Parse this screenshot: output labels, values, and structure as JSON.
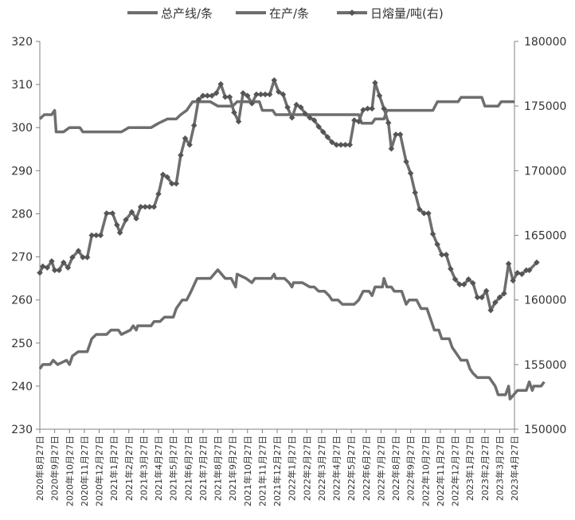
{
  "chart_data": {
    "type": "line",
    "x_ticks": [
      "2020年8月27日",
      "2020年9月27日",
      "2020年10月27日",
      "2020年11月27日",
      "2020年12月27日",
      "2021年1月27日",
      "2021年2月27日",
      "2021年3月27日",
      "2021年4月27日",
      "2021年5月27日",
      "2021年6月27日",
      "2021年7月27日",
      "2021年8月27日",
      "2021年9月27日",
      "2021年10月27日",
      "2021年11月27日",
      "2021年12月27日",
      "2022年1月27日",
      "2022年2月27日",
      "2022年3月27日",
      "2022年4月27日",
      "2022年5月27日",
      "2022年6月27日",
      "2022年7月27日",
      "2022年8月27日",
      "2022年9月27日",
      "2022年10月27日",
      "2022年11月27日",
      "2022年12月27日",
      "2023年1月27日",
      "2023年2月27日",
      "2023年3月27日",
      "2023年4月27日"
    ],
    "y_left": {
      "min": 230,
      "max": 320,
      "ticks": [
        "230",
        "240",
        "250",
        "260",
        "270",
        "280",
        "290",
        "300",
        "310",
        "320"
      ]
    },
    "y_right": {
      "min": 150000,
      "max": 180000,
      "ticks": [
        "150000",
        "155000",
        "160000",
        "165000",
        "170000",
        "175000",
        "180000"
      ]
    },
    "legend_position": "top",
    "grid": false,
    "series": [
      {
        "name": "总产线/条",
        "axis": "left",
        "color": "#6e6e6e",
        "marker": false,
        "values": [
          [
            0,
            302
          ],
          [
            0.3,
            303
          ],
          [
            0.8,
            303
          ],
          [
            1,
            304
          ],
          [
            1.1,
            299
          ],
          [
            1.6,
            299
          ],
          [
            2,
            300
          ],
          [
            2.7,
            300
          ],
          [
            2.9,
            299
          ],
          [
            5.5,
            299
          ],
          [
            6,
            300
          ],
          [
            7.5,
            300
          ],
          [
            8,
            301
          ],
          [
            8.6,
            302
          ],
          [
            9.2,
            302
          ],
          [
            9.5,
            303
          ],
          [
            9.9,
            304
          ],
          [
            10.3,
            306
          ],
          [
            11.5,
            306
          ],
          [
            12,
            305
          ],
          [
            13,
            305
          ],
          [
            13.3,
            306
          ],
          [
            14.8,
            306
          ],
          [
            14.9,
            305
          ],
          [
            15,
            304
          ],
          [
            15.7,
            304
          ],
          [
            15.9,
            303
          ],
          [
            21.5,
            303
          ],
          [
            21.7,
            301
          ],
          [
            22.4,
            301
          ],
          [
            22.6,
            302
          ],
          [
            23.2,
            302
          ],
          [
            23.4,
            304
          ],
          [
            26.5,
            304
          ],
          [
            26.8,
            306
          ],
          [
            28.2,
            306
          ],
          [
            28.4,
            307
          ],
          [
            29.8,
            307
          ],
          [
            30,
            305
          ],
          [
            30.9,
            305
          ],
          [
            31.1,
            306
          ],
          [
            32,
            306
          ]
        ]
      },
      {
        "name": "在产/条",
        "axis": "left",
        "color": "#6e6e6e",
        "marker": false,
        "values": [
          [
            0,
            244
          ],
          [
            0.2,
            245
          ],
          [
            0.7,
            245
          ],
          [
            0.9,
            246
          ],
          [
            1.2,
            245
          ],
          [
            1.8,
            246
          ],
          [
            2,
            245
          ],
          [
            2.2,
            247
          ],
          [
            2.6,
            248
          ],
          [
            3.2,
            248
          ],
          [
            3.5,
            251
          ],
          [
            3.8,
            252
          ],
          [
            4.5,
            252
          ],
          [
            4.8,
            253
          ],
          [
            5.3,
            253
          ],
          [
            5.5,
            252
          ],
          [
            6.1,
            253
          ],
          [
            6.3,
            254
          ],
          [
            6.5,
            253
          ],
          [
            6.6,
            254
          ],
          [
            7.5,
            254
          ],
          [
            7.7,
            255
          ],
          [
            8.1,
            255
          ],
          [
            8.4,
            256
          ],
          [
            9,
            256
          ],
          [
            9.2,
            258
          ],
          [
            9.6,
            260
          ],
          [
            9.9,
            260
          ],
          [
            10.2,
            262
          ],
          [
            10.6,
            265
          ],
          [
            11.5,
            265
          ],
          [
            12,
            267
          ],
          [
            12.5,
            265
          ],
          [
            12.9,
            265
          ],
          [
            13.2,
            263
          ],
          [
            13.3,
            266
          ],
          [
            13.9,
            265
          ],
          [
            14.3,
            264
          ],
          [
            14.5,
            265
          ],
          [
            15.6,
            265
          ],
          [
            15.8,
            266
          ],
          [
            15.9,
            265
          ],
          [
            16.5,
            265
          ],
          [
            16.8,
            264
          ],
          [
            17,
            263
          ],
          [
            17.1,
            264
          ],
          [
            17.7,
            264
          ],
          [
            18.2,
            263
          ],
          [
            18.5,
            263
          ],
          [
            18.8,
            262
          ],
          [
            19.2,
            262
          ],
          [
            19.5,
            261
          ],
          [
            19.7,
            260
          ],
          [
            20.1,
            260
          ],
          [
            20.4,
            259
          ],
          [
            21.2,
            259
          ],
          [
            21.5,
            260
          ],
          [
            21.8,
            262
          ],
          [
            22.2,
            262
          ],
          [
            22.4,
            261
          ],
          [
            22.6,
            263
          ],
          [
            23.1,
            263
          ],
          [
            23.2,
            265
          ],
          [
            23.4,
            263
          ],
          [
            23.7,
            263
          ],
          [
            23.9,
            262
          ],
          [
            24.4,
            262
          ],
          [
            24.7,
            259
          ],
          [
            24.9,
            260
          ],
          [
            25.4,
            260
          ],
          [
            25.7,
            258
          ],
          [
            26.1,
            258
          ],
          [
            26.4,
            255
          ],
          [
            26.6,
            253
          ],
          [
            26.9,
            253
          ],
          [
            27.1,
            251
          ],
          [
            27.6,
            251
          ],
          [
            27.8,
            249
          ],
          [
            28.2,
            247
          ],
          [
            28.4,
            246
          ],
          [
            28.8,
            246
          ],
          [
            29,
            244
          ],
          [
            29.2,
            243
          ],
          [
            29.5,
            242
          ],
          [
            30.3,
            242
          ],
          [
            30.7,
            240
          ],
          [
            30.9,
            238
          ],
          [
            31.4,
            238
          ],
          [
            31.6,
            240
          ],
          [
            31.7,
            237
          ],
          [
            32.2,
            239
          ],
          [
            32.8,
            239
          ],
          [
            33,
            241
          ],
          [
            33.2,
            239
          ],
          [
            33.3,
            240
          ],
          [
            33.8,
            240
          ],
          [
            34,
            241
          ]
        ]
      },
      {
        "name": "日熔量/吨(右)",
        "axis": "right",
        "color": "#6e6e6e",
        "marker": true,
        "values": [
          [
            0,
            162100
          ],
          [
            0.2,
            162600
          ],
          [
            0.5,
            162500
          ],
          [
            0.8,
            163000
          ],
          [
            1.0,
            162300
          ],
          [
            1.3,
            162300
          ],
          [
            1.6,
            162900
          ],
          [
            1.9,
            162500
          ],
          [
            2.2,
            163300
          ],
          [
            2.6,
            163800
          ],
          [
            2.9,
            163300
          ],
          [
            3.2,
            163300
          ],
          [
            3.5,
            165000
          ],
          [
            3.8,
            165000
          ],
          [
            4.1,
            165000
          ],
          [
            4.5,
            166700
          ],
          [
            4.9,
            166700
          ],
          [
            5.2,
            165800
          ],
          [
            5.4,
            165200
          ],
          [
            5.8,
            166200
          ],
          [
            6.2,
            166800
          ],
          [
            6.5,
            166300
          ],
          [
            6.8,
            167200
          ],
          [
            7.1,
            167200
          ],
          [
            7.4,
            167200
          ],
          [
            7.7,
            167200
          ],
          [
            8.0,
            168200
          ],
          [
            8.3,
            169700
          ],
          [
            8.6,
            169500
          ],
          [
            8.9,
            169000
          ],
          [
            9.2,
            169000
          ],
          [
            9.5,
            171200
          ],
          [
            9.8,
            172500
          ],
          [
            10.1,
            172000
          ],
          [
            10.4,
            173500
          ],
          [
            10.7,
            175500
          ],
          [
            11.0,
            175800
          ],
          [
            11.3,
            175800
          ],
          [
            11.6,
            175800
          ],
          [
            11.9,
            176000
          ],
          [
            12.2,
            176700
          ],
          [
            12.5,
            175700
          ],
          [
            12.8,
            175700
          ],
          [
            13.1,
            174500
          ],
          [
            13.4,
            173800
          ],
          [
            13.7,
            176000
          ],
          [
            14.0,
            175800
          ],
          [
            14.3,
            175200
          ],
          [
            14.6,
            175900
          ],
          [
            14.9,
            175900
          ],
          [
            15.2,
            175900
          ],
          [
            15.5,
            175900
          ],
          [
            15.8,
            177000
          ],
          [
            16.1,
            176100
          ],
          [
            16.4,
            175900
          ],
          [
            16.7,
            174900
          ],
          [
            17.0,
            174100
          ],
          [
            17.3,
            175100
          ],
          [
            17.6,
            174900
          ],
          [
            17.9,
            174400
          ],
          [
            18.2,
            174100
          ],
          [
            18.5,
            173900
          ],
          [
            18.8,
            173400
          ],
          [
            19.1,
            173000
          ],
          [
            19.4,
            172600
          ],
          [
            19.7,
            172200
          ],
          [
            20.0,
            172000
          ],
          [
            20.3,
            172000
          ],
          [
            20.6,
            172000
          ],
          [
            20.9,
            172000
          ],
          [
            21.2,
            173900
          ],
          [
            21.5,
            173800
          ],
          [
            21.8,
            174700
          ],
          [
            22.1,
            174800
          ],
          [
            22.4,
            174800
          ],
          [
            22.6,
            176800
          ],
          [
            22.9,
            175800
          ],
          [
            23.2,
            174800
          ],
          [
            23.5,
            173700
          ],
          [
            23.7,
            171700
          ],
          [
            24.0,
            172800
          ],
          [
            24.3,
            172800
          ],
          [
            24.7,
            170700
          ],
          [
            25.0,
            169800
          ],
          [
            25.3,
            168300
          ],
          [
            25.6,
            167000
          ],
          [
            25.9,
            166700
          ],
          [
            26.2,
            166700
          ],
          [
            26.5,
            165100
          ],
          [
            26.8,
            164300
          ],
          [
            27.1,
            163500
          ],
          [
            27.4,
            163500
          ],
          [
            27.7,
            162400
          ],
          [
            28.0,
            161600
          ],
          [
            28.3,
            161200
          ],
          [
            28.6,
            161200
          ],
          [
            28.9,
            161600
          ],
          [
            29.2,
            161300
          ],
          [
            29.5,
            160200
          ],
          [
            29.8,
            160200
          ],
          [
            30.1,
            160700
          ],
          [
            30.4,
            159200
          ],
          [
            30.7,
            159800
          ],
          [
            31.0,
            160200
          ],
          [
            31.3,
            160500
          ],
          [
            31.6,
            162800
          ],
          [
            31.9,
            161500
          ],
          [
            32.2,
            162100
          ],
          [
            32.5,
            162000
          ],
          [
            32.8,
            162300
          ],
          [
            33.0,
            162300
          ],
          [
            33.5,
            162900
          ]
        ]
      }
    ]
  }
}
